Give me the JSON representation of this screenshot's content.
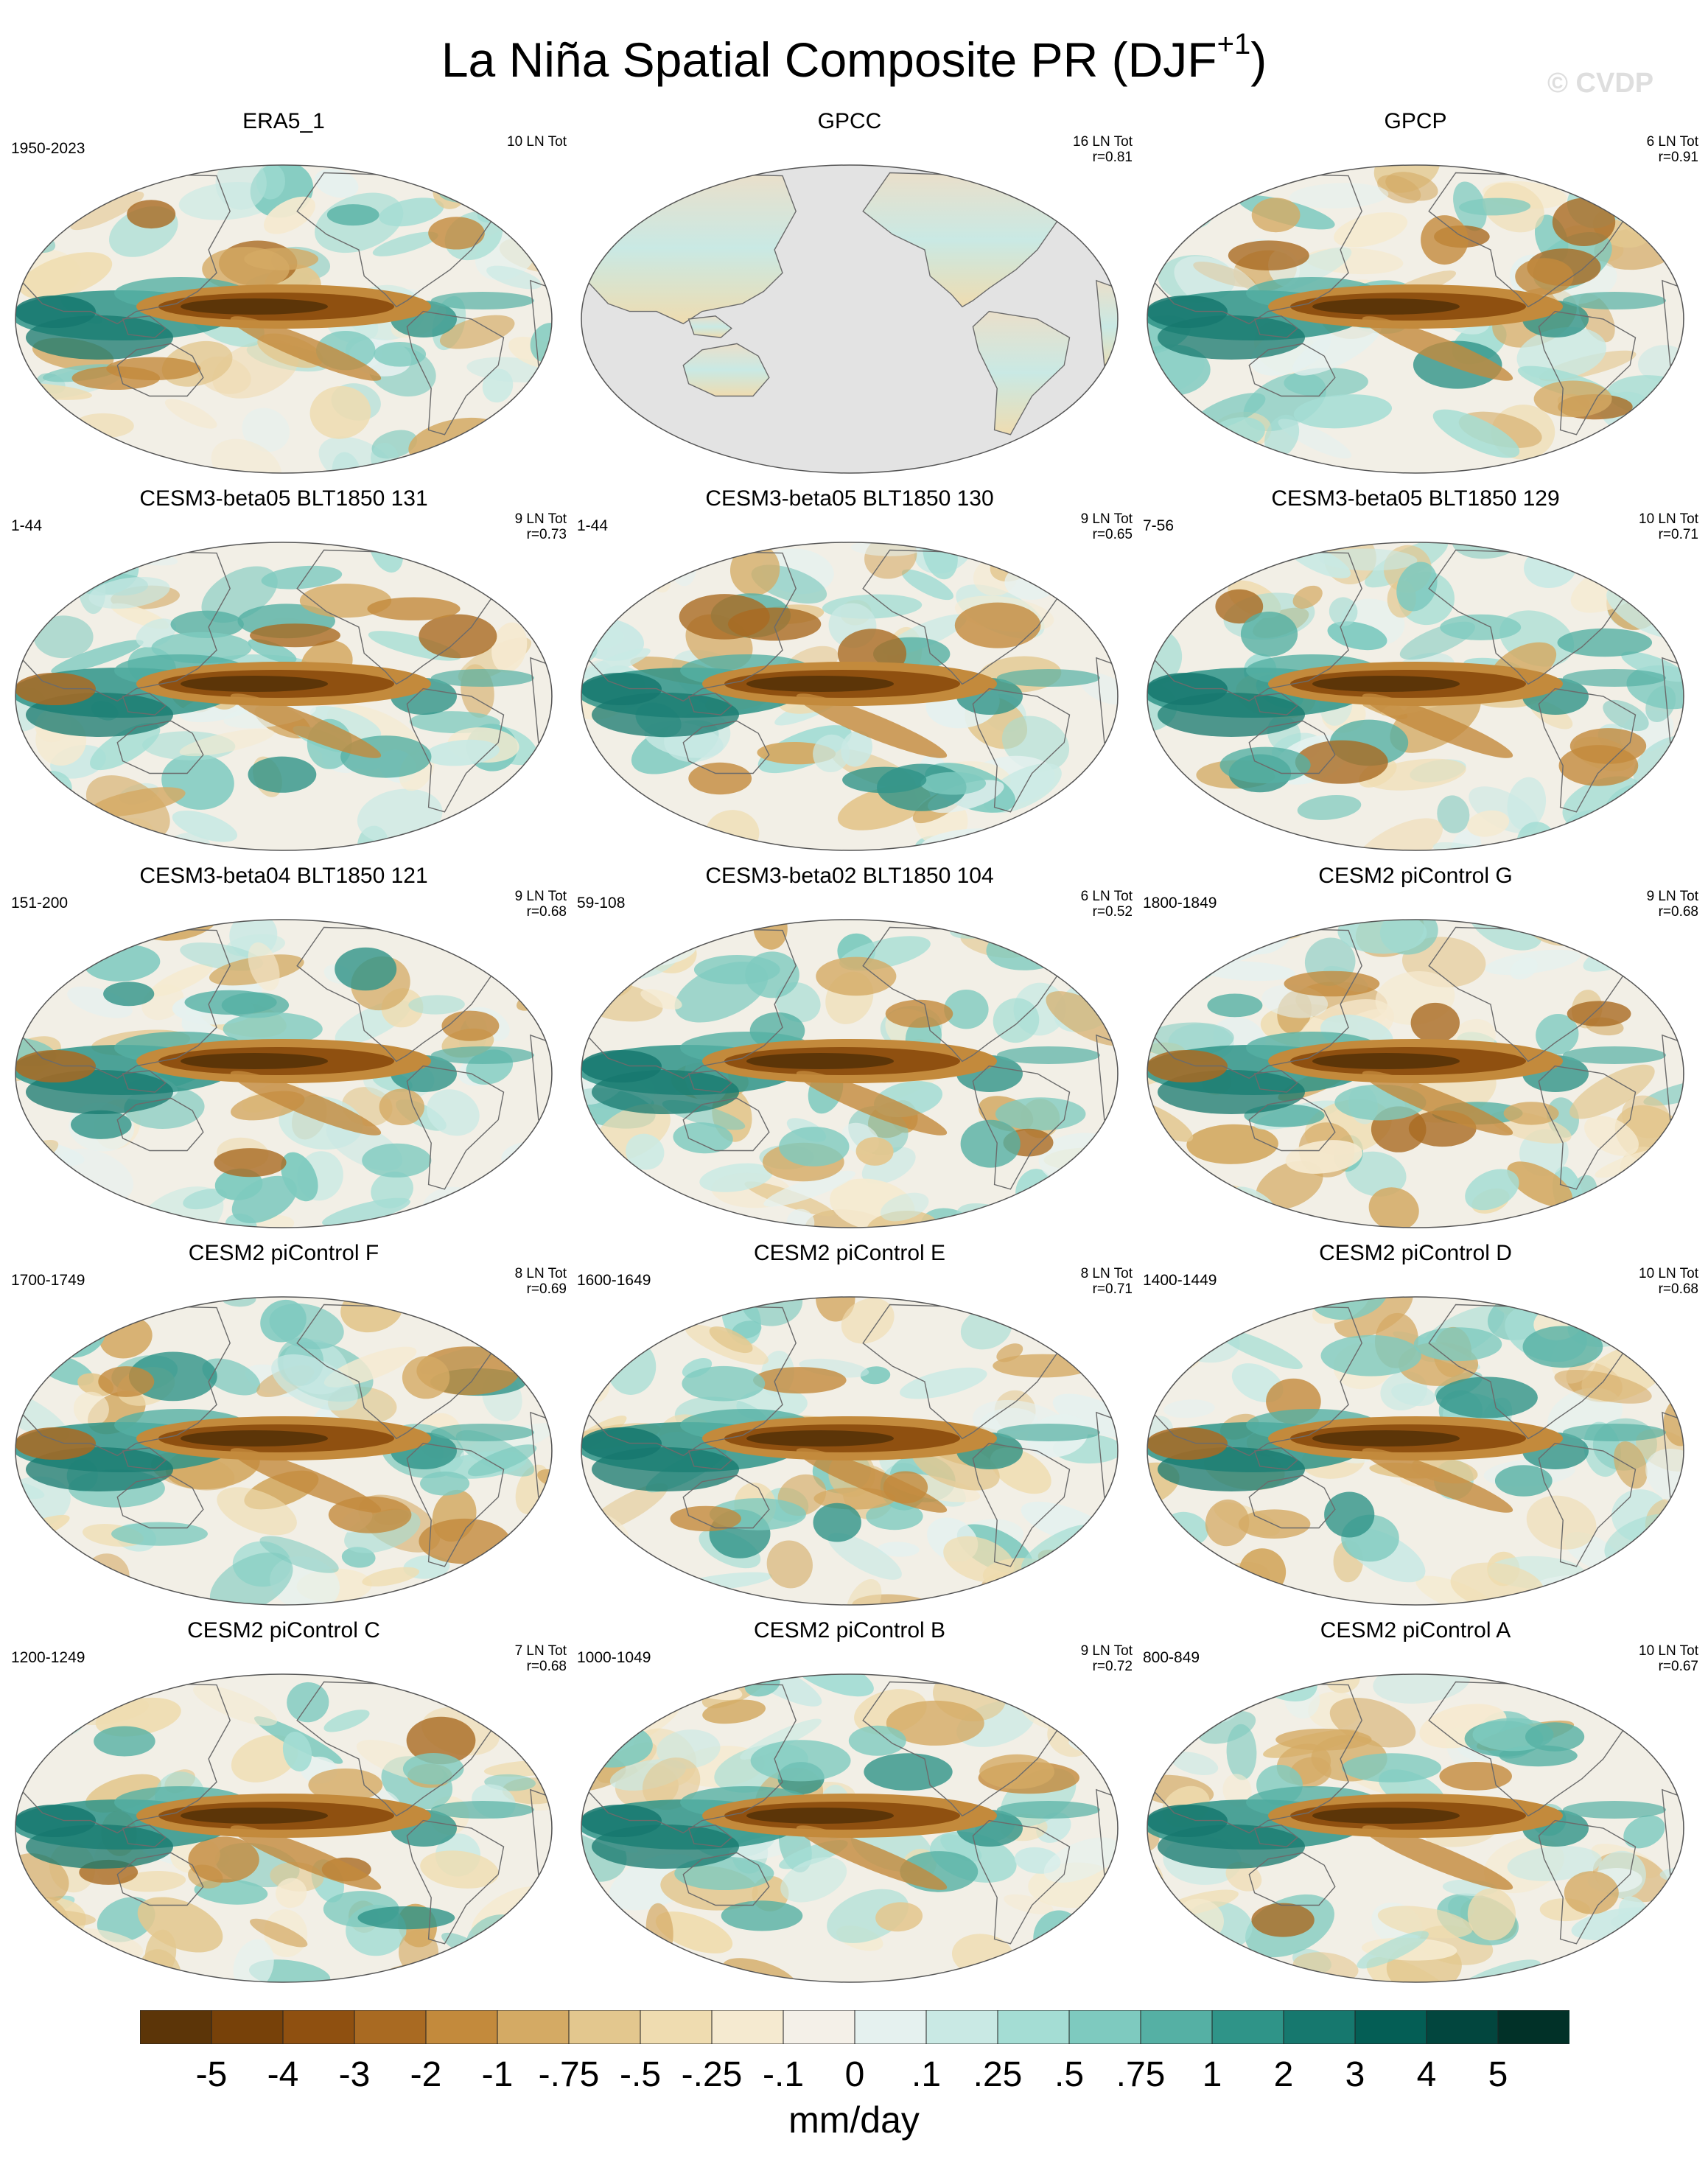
{
  "title": {
    "main": "La Niña Spatial Composite PR (DJF",
    "superscript": "+1",
    "close": ")"
  },
  "watermark": "© CVDP",
  "panels": [
    {
      "title": "ERA5_1",
      "years": "1950-2023",
      "count": "10 LN Tot",
      "corr": "",
      "land_only": false
    },
    {
      "title": "GPCC",
      "years": "",
      "count": "16 LN Tot",
      "corr": "r=0.81",
      "land_only": true
    },
    {
      "title": "GPCP",
      "years": "",
      "count": "6 LN Tot",
      "corr": "r=0.91",
      "land_only": false
    },
    {
      "title": "CESM3-beta05 BLT1850 131",
      "years": "1-44",
      "count": "9 LN Tot",
      "corr": "r=0.73",
      "land_only": false
    },
    {
      "title": "CESM3-beta05 BLT1850 130",
      "years": "1-44",
      "count": "9 LN Tot",
      "corr": "r=0.65",
      "land_only": false
    },
    {
      "title": "CESM3-beta05 BLT1850 129",
      "years": "7-56",
      "count": "10 LN Tot",
      "corr": "r=0.71",
      "land_only": false
    },
    {
      "title": "CESM3-beta04 BLT1850 121",
      "years": "151-200",
      "count": "9 LN Tot",
      "corr": "r=0.68",
      "land_only": false
    },
    {
      "title": "CESM3-beta02 BLT1850 104",
      "years": "59-108",
      "count": "6 LN Tot",
      "corr": "r=0.52",
      "land_only": false
    },
    {
      "title": "CESM2 piControl G",
      "years": "1800-1849",
      "count": "9 LN Tot",
      "corr": "r=0.68",
      "land_only": false
    },
    {
      "title": "CESM2 piControl F",
      "years": "1700-1749",
      "count": "8 LN Tot",
      "corr": "r=0.69",
      "land_only": false
    },
    {
      "title": "CESM2 piControl E",
      "years": "1600-1649",
      "count": "8 LN Tot",
      "corr": "r=0.71",
      "land_only": false
    },
    {
      "title": "CESM2 piControl D",
      "years": "1400-1449",
      "count": "10 LN Tot",
      "corr": "r=0.68",
      "land_only": false
    },
    {
      "title": "CESM2 piControl C",
      "years": "1200-1249",
      "count": "7 LN Tot",
      "corr": "r=0.68",
      "land_only": false
    },
    {
      "title": "CESM2 piControl B",
      "years": "1000-1049",
      "count": "9 LN Tot",
      "corr": "r=0.72",
      "land_only": false
    },
    {
      "title": "CESM2 piControl A",
      "years": "800-849",
      "count": "10 LN Tot",
      "corr": "r=0.67",
      "land_only": false
    }
  ],
  "colorbar": {
    "labels": [
      "-5",
      "-4",
      "-3",
      "-2",
      "-1",
      "-.75",
      "-.5",
      "-.25",
      "-.1",
      "0",
      ".1",
      ".25",
      ".5",
      ".75",
      "1",
      "2",
      "3",
      "4",
      "5"
    ],
    "colors": [
      "#5c3508",
      "#774109",
      "#8f5010",
      "#a96a22",
      "#c38a3c",
      "#d4aa64",
      "#e3c78e",
      "#efdcb0",
      "#f5ead0",
      "#f4f0e8",
      "#e5f1ef",
      "#c9e9e4",
      "#a4ddd4",
      "#7ecabf",
      "#55b0a4",
      "#2f9488",
      "#16786e",
      "#045e55",
      "#02463e",
      "#013128"
    ],
    "units": "mm/day"
  }
}
